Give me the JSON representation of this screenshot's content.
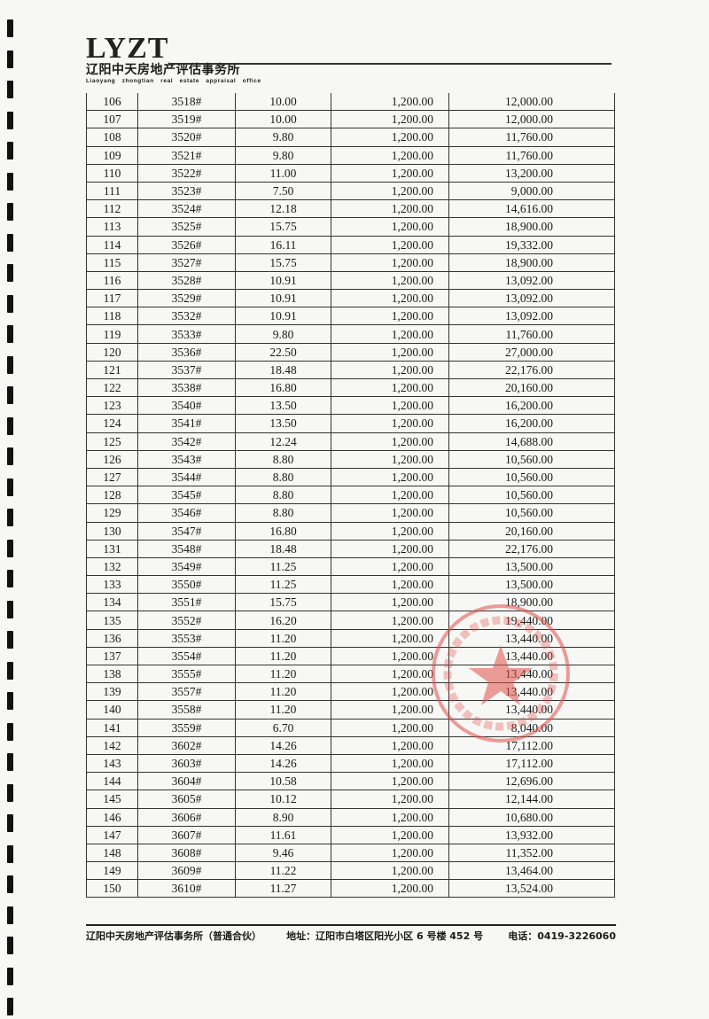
{
  "header": {
    "logo_mark": "LYZT",
    "company_cn": "辽阳中天房地产评估事务所",
    "company_en": "Liaoyang zhongtian real estate appraisal office"
  },
  "table": {
    "rows": [
      [
        "106",
        "3518#",
        "10.00",
        "1,200.00",
        "12,000.00"
      ],
      [
        "107",
        "3519#",
        "10.00",
        "1,200.00",
        "12,000.00"
      ],
      [
        "108",
        "3520#",
        "9.80",
        "1,200.00",
        "11,760.00"
      ],
      [
        "109",
        "3521#",
        "9.80",
        "1,200.00",
        "11,760.00"
      ],
      [
        "110",
        "3522#",
        "11.00",
        "1,200.00",
        "13,200.00"
      ],
      [
        "111",
        "3523#",
        "7.50",
        "1,200.00",
        "9,000.00"
      ],
      [
        "112",
        "3524#",
        "12.18",
        "1,200.00",
        "14,616.00"
      ],
      [
        "113",
        "3525#",
        "15.75",
        "1,200.00",
        "18,900.00"
      ],
      [
        "114",
        "3526#",
        "16.11",
        "1,200.00",
        "19,332.00"
      ],
      [
        "115",
        "3527#",
        "15.75",
        "1,200.00",
        "18,900.00"
      ],
      [
        "116",
        "3528#",
        "10.91",
        "1,200.00",
        "13,092.00"
      ],
      [
        "117",
        "3529#",
        "10.91",
        "1,200.00",
        "13,092.00"
      ],
      [
        "118",
        "3532#",
        "10.91",
        "1,200.00",
        "13,092.00"
      ],
      [
        "119",
        "3533#",
        "9.80",
        "1,200.00",
        "11,760.00"
      ],
      [
        "120",
        "3536#",
        "22.50",
        "1,200.00",
        "27,000.00"
      ],
      [
        "121",
        "3537#",
        "18.48",
        "1,200.00",
        "22,176.00"
      ],
      [
        "122",
        "3538#",
        "16.80",
        "1,200.00",
        "20,160.00"
      ],
      [
        "123",
        "3540#",
        "13.50",
        "1,200.00",
        "16,200.00"
      ],
      [
        "124",
        "3541#",
        "13.50",
        "1,200.00",
        "16,200.00"
      ],
      [
        "125",
        "3542#",
        "12.24",
        "1,200.00",
        "14,688.00"
      ],
      [
        "126",
        "3543#",
        "8.80",
        "1,200.00",
        "10,560.00"
      ],
      [
        "127",
        "3544#",
        "8.80",
        "1,200.00",
        "10,560.00"
      ],
      [
        "128",
        "3545#",
        "8.80",
        "1,200.00",
        "10,560.00"
      ],
      [
        "129",
        "3546#",
        "8.80",
        "1,200.00",
        "10,560.00"
      ],
      [
        "130",
        "3547#",
        "16.80",
        "1,200.00",
        "20,160.00"
      ],
      [
        "131",
        "3548#",
        "18.48",
        "1,200.00",
        "22,176.00"
      ],
      [
        "132",
        "3549#",
        "11.25",
        "1,200.00",
        "13,500.00"
      ],
      [
        "133",
        "3550#",
        "11.25",
        "1,200.00",
        "13,500.00"
      ],
      [
        "134",
        "3551#",
        "15.75",
        "1,200.00",
        "18,900.00"
      ],
      [
        "135",
        "3552#",
        "16.20",
        "1,200.00",
        "19,440.00"
      ],
      [
        "136",
        "3553#",
        "11.20",
        "1,200.00",
        "13,440.00"
      ],
      [
        "137",
        "3554#",
        "11.20",
        "1,200.00",
        "13,440.00"
      ],
      [
        "138",
        "3555#",
        "11.20",
        "1,200.00",
        "13,440.00"
      ],
      [
        "139",
        "3557#",
        "11.20",
        "1,200.00",
        "13,440.00"
      ],
      [
        "140",
        "3558#",
        "11.20",
        "1,200.00",
        "13,440.00"
      ],
      [
        "141",
        "3559#",
        "6.70",
        "1,200.00",
        "8,040.00"
      ],
      [
        "142",
        "3602#",
        "14.26",
        "1,200.00",
        "17,112.00"
      ],
      [
        "143",
        "3603#",
        "14.26",
        "1,200.00",
        "17,112.00"
      ],
      [
        "144",
        "3604#",
        "10.58",
        "1,200.00",
        "12,696.00"
      ],
      [
        "145",
        "3605#",
        "10.12",
        "1,200.00",
        "12,144.00"
      ],
      [
        "146",
        "3606#",
        "8.90",
        "1,200.00",
        "10,680.00"
      ],
      [
        "147",
        "3607#",
        "11.61",
        "1,200.00",
        "13,932.00"
      ],
      [
        "148",
        "3608#",
        "9.46",
        "1,200.00",
        "11,352.00"
      ],
      [
        "149",
        "3609#",
        "11.22",
        "1,200.00",
        "13,464.00"
      ],
      [
        "150",
        "3610#",
        "11.27",
        "1,200.00",
        "13,524.00"
      ]
    ]
  },
  "footer": {
    "company": "辽阳中天房地产评估事务所（普通合伙）",
    "address": "地址：辽阳市白塔区阳光小区 6 号楼 452 号",
    "phone": "电话：0419-3226060"
  },
  "stamp": {
    "text": "辽阳中天房地产评估事务所",
    "code": "211002000",
    "color": "#e0504a"
  },
  "colors": {
    "paper": "#f7f7f5",
    "ink": "#1a1a1a",
    "stamp": "#e0504a"
  }
}
